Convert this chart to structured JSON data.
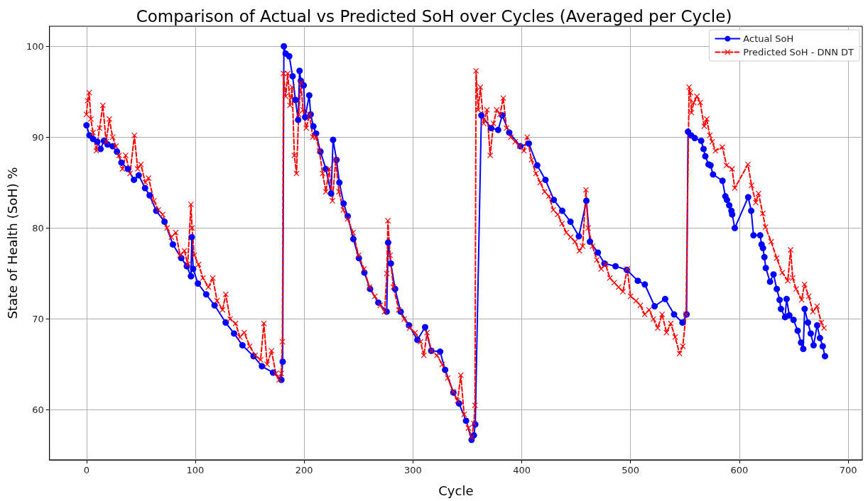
{
  "chart_data": {
    "type": "line",
    "title": "Comparison of Actual vs Predicted SoH over Cycles (Averaged per Cycle)",
    "xlabel": "Cycle",
    "ylabel": "State of Health (SoH) %",
    "xlim": [
      -34,
      713
    ],
    "xticks": [
      0,
      100,
      200,
      300,
      400,
      500,
      600,
      700
    ],
    "ylim": [
      54.5,
      102.2
    ],
    "yticks": [
      60,
      70,
      80,
      90,
      100
    ],
    "grid": true,
    "legend": "top right",
    "series": [
      {
        "name": "Actual SoH",
        "color": "#0000ff",
        "marker": "circle",
        "line_style": "solid",
        "x": [
          0,
          2.7,
          6,
          10,
          12.9,
          16,
          19.3,
          24,
          28,
          32.1,
          38,
          43.6,
          48,
          53.8,
          58,
          64.1,
          71.7,
          79.4,
          87.1,
          92.2,
          96,
          96.8,
          98,
          102.4,
          110,
          117.7,
          127.9,
          135.6,
          143.3,
          153.5,
          161.2,
          171.4,
          179.1,
          180.3,
          181.4,
          183,
          186.3,
          189.4,
          192,
          194.5,
          195.8,
          197,
          199.6,
          200.9,
          204.7,
          206,
          208.5,
          211,
          215,
          220,
          224.8,
          226.6,
          229.8,
          232.4,
          236.3,
          240.1,
          245.2,
          250.3,
          255.4,
          260.6,
          268.2,
          275.9,
          277.2,
          279.7,
          283.6,
          288.7,
          296.4,
          304.1,
          311.2,
          316.8,
          325,
          329.6,
          337.2,
          342.4,
          348.8,
          353.9,
          356,
          357.3,
          362.9,
          371.9,
          378.3,
          382.1,
          388.5,
          398.8,
          406.5,
          414.2,
          421.8,
          429.5,
          437.2,
          444.8,
          452.5,
          459.4,
          462.7,
          470,
          476,
          486.2,
          496.5,
          506.7,
          513.1,
          522.1,
          531.8,
          540,
          547.7,
          551.5,
          552.8,
          555.6,
          559,
          564.9,
          567.1,
          568.7,
          571.7,
          573.5,
          575.8,
          584.5,
          587.1,
          588.6,
          590.7,
          592.7,
          593.4,
          595.8,
          608.1,
          610.9,
          613,
          619.1,
          620.4,
          621.7,
          623,
          624.3,
          628.2,
          631.4,
          634.4,
          637,
          638.2,
          642,
          643.4,
          645.9,
          649.8,
          653.6,
          656.7,
          658.7,
          660,
          663,
          665.6,
          668.2,
          671.5,
          674.1,
          676.6,
          678.7
        ],
        "values": [
          91.3,
          90.2,
          89.8,
          89.5,
          88.7,
          89.6,
          89.2,
          89.0,
          88.4,
          87.2,
          86.5,
          85.3,
          85.8,
          84.4,
          83.6,
          81.9,
          80.7,
          78.2,
          76.7,
          75.8,
          74.7,
          79.0,
          75.5,
          73.9,
          72.7,
          71.5,
          69.6,
          68.4,
          67.1,
          65.9,
          64.8,
          64.1,
          63.3,
          65.3,
          100,
          99.2,
          98.9,
          96.7,
          94.1,
          91.9,
          97.3,
          96.2,
          95.7,
          92.2,
          94.6,
          92.5,
          91.2,
          90.4,
          88.4,
          86.5,
          83.8,
          89.7,
          87.5,
          85.0,
          82.7,
          81.3,
          78.8,
          76.7,
          75.1,
          73.3,
          71.8,
          70.8,
          78.4,
          76.1,
          73.3,
          70.8,
          69.3,
          67.7,
          69.1,
          66.5,
          66.4,
          64.4,
          61.9,
          60.7,
          58.8,
          56.7,
          57.2,
          58.4,
          92.4,
          91.0,
          90.8,
          92.4,
          90.5,
          89.0,
          89.3,
          86.9,
          85.3,
          83.1,
          81.9,
          80.7,
          79.1,
          83.0,
          78.5,
          77.3,
          76.1,
          75.8,
          75.4,
          74.2,
          73.8,
          71.4,
          72.2,
          70.5,
          69.6,
          70.5,
          90.6,
          90.2,
          89.9,
          89.6,
          88.7,
          87.9,
          87.0,
          86.9,
          85.9,
          85.2,
          83.5,
          83.1,
          82.5,
          81.9,
          81.5,
          80.0,
          83.4,
          81.9,
          79.2,
          79.2,
          78.2,
          77.8,
          76.8,
          75.6,
          74.1,
          74.9,
          73.3,
          72.1,
          71.1,
          70.2,
          72.2,
          70.4,
          69.9,
          68.7,
          67.4,
          66.7,
          71.1,
          69.6,
          68.4,
          67.1,
          69.3,
          67.9,
          67.0,
          65.9
        ]
      },
      {
        "name": "Predicted SoH - DNN DT",
        "color": "#ff0000",
        "marker": "cross",
        "line_style": "dashed",
        "x": [
          0,
          1,
          2.5,
          4,
          6,
          9,
          12,
          15,
          18,
          21,
          24,
          27,
          30,
          33,
          36,
          40,
          44,
          47,
          50,
          54,
          57,
          62,
          66,
          70,
          74,
          78,
          82,
          86,
          90,
          93,
          96,
          97,
          99,
          103,
          107,
          112,
          116,
          120,
          125,
          128,
          132,
          137,
          141,
          145,
          150,
          155,
          160,
          163,
          166,
          170,
          174,
          177,
          179,
          180,
          181,
          183,
          185,
          187,
          189,
          191,
          193,
          195,
          197,
          199,
          202,
          205,
          208,
          211,
          214,
          217,
          220,
          223,
          226,
          229,
          232,
          236,
          240,
          245,
          250,
          255,
          260,
          265,
          270,
          274,
          276,
          277,
          279,
          282,
          287,
          292,
          297,
          302,
          307,
          310,
          313,
          317,
          322,
          327,
          332,
          337,
          341,
          344,
          347,
          351,
          354,
          356,
          357,
          358,
          360,
          362,
          365,
          368,
          371,
          374,
          377,
          380,
          383,
          386,
          390,
          394,
          398,
          402,
          405,
          409,
          413,
          417,
          421,
          425,
          429,
          433,
          437,
          441,
          445,
          449,
          453,
          456,
          459,
          461,
          465,
          469,
          473,
          477,
          481,
          485,
          489,
          493,
          497,
          500,
          505,
          509,
          513,
          517,
          521,
          525,
          529,
          533,
          537,
          541,
          545,
          548,
          551,
          553.8,
          555,
          556,
          558,
          561,
          564,
          567.7,
          570,
          572.8,
          575,
          578,
          584.4,
          588.2,
          593.3,
          595.8,
          607.9,
          611.2,
          615.1,
          617.6,
          621.5,
          624,
          629.2,
          634.3,
          639.4,
          644.5,
          647.1,
          649,
          652.2,
          657.3,
          659.9,
          663.7,
          667.6,
          671.4,
          675.3,
          677.8
        ],
        "values": [
          92.5,
          94,
          94.9,
          92,
          90.5,
          88.5,
          91,
          93.5,
          89.5,
          92,
          90,
          89,
          88,
          86.5,
          88,
          86,
          90.2,
          86.5,
          87,
          85,
          85.5,
          83,
          82,
          81.5,
          80,
          79,
          79.5,
          77,
          77.5,
          76,
          82.6,
          80,
          77,
          76,
          74.5,
          73.5,
          74.5,
          72,
          71,
          72.7,
          70,
          69.5,
          68,
          68.5,
          67,
          66,
          65.5,
          69.5,
          65,
          66.5,
          64,
          63.3,
          64,
          67.5,
          97,
          94.5,
          97,
          93.5,
          95.5,
          88,
          86,
          92.5,
          96,
          93,
          91,
          92.5,
          90,
          90,
          88.5,
          86,
          84,
          86.5,
          83,
          87.5,
          84,
          82,
          81,
          79.5,
          77,
          75.5,
          73.5,
          72.5,
          71.5,
          70.8,
          75,
          80.8,
          77,
          73.5,
          71,
          70,
          69,
          68.5,
          67.5,
          66,
          68.5,
          66.5,
          66,
          65,
          63.5,
          62,
          61,
          63.8,
          59.5,
          58,
          57,
          58.5,
          60.5,
          97.3,
          93,
          95.5,
          91.5,
          93,
          88,
          91.5,
          93,
          92.5,
          94.3,
          91,
          90,
          89.5,
          89,
          88.5,
          90,
          87.5,
          86,
          85,
          84,
          83.5,
          82,
          81.5,
          80.5,
          79.5,
          79,
          78.5,
          77.5,
          78,
          84.2,
          80,
          78,
          76.5,
          75.5,
          76,
          74.5,
          74,
          73.5,
          73,
          75.5,
          72.5,
          72,
          71.5,
          70.5,
          71,
          70,
          69,
          70.5,
          68.5,
          69.5,
          68,
          66.2,
          67,
          70.5,
          95.5,
          94.9,
          92.7,
          93.8,
          94.5,
          93.8,
          91.2,
          92,
          90.2,
          89.5,
          88.5,
          88.9,
          86.9,
          86.5,
          84.4,
          87.0,
          84.7,
          82.8,
          83.8,
          81.6,
          80.1,
          78.5,
          76.7,
          75.1,
          74.2,
          77.6,
          74.5,
          73.3,
          72.1,
          73.8,
          72.5,
          70.8,
          71.4,
          69.6,
          69.0
        ]
      }
    ]
  }
}
